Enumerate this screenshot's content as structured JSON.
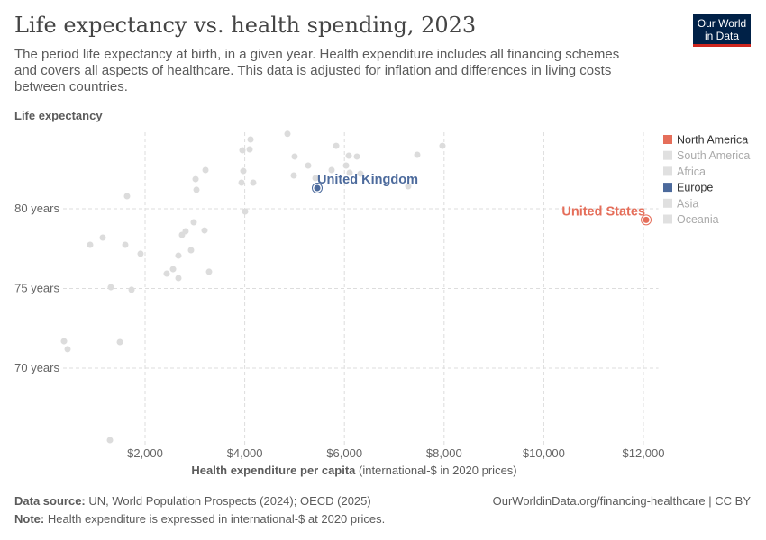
{
  "header": {
    "title": "Life expectancy vs. health spending, 2023",
    "subtitle": "The period life expectancy at birth, in a given year. Health expenditure includes all financing schemes and covers all aspects of healthcare. This data is adjusted for inflation and differences in living costs between countries.",
    "logo": "Our World in Data"
  },
  "footer": {
    "source_label": "Data source:",
    "source": "UN, World Population Prospects (2024); OECD (2025)",
    "url": "OurWorldinData.org/financing-healthcare | CC BY",
    "note_label": "Note:",
    "note": "Health expenditure is expressed in international-$ at 2020 prices."
  },
  "chart_data": {
    "type": "scatter",
    "title": "Life expectancy vs. health spending, 2023",
    "ylabel": "Life expectancy",
    "xlabel": "Health expenditure per capita",
    "xlabel_unit": "(international-$ in 2020 prices)",
    "xlim": [
      0,
      12300
    ],
    "ylim": [
      65,
      84.8
    ],
    "xticks": [
      {
        "v": 2000,
        "label": "$2,000"
      },
      {
        "v": 4000,
        "label": "$4,000"
      },
      {
        "v": 6000,
        "label": "$6,000"
      },
      {
        "v": 8000,
        "label": "$8,000"
      },
      {
        "v": 10000,
        "label": "$10,000"
      },
      {
        "v": 12000,
        "label": "$12,000"
      }
    ],
    "yticks": [
      {
        "v": 70,
        "label": "70 years"
      },
      {
        "v": 75,
        "label": "75 years"
      },
      {
        "v": 80,
        "label": "80 years"
      }
    ],
    "grid": true,
    "legend_placement": "right",
    "legend": [
      {
        "name": "North America",
        "color": "#e56e5a",
        "active": true
      },
      {
        "name": "South America",
        "color": "#e0e0e0",
        "active": false
      },
      {
        "name": "Africa",
        "color": "#e0e0e0",
        "active": false
      },
      {
        "name": "Europe",
        "color": "#4c6a9c",
        "active": true
      },
      {
        "name": "Asia",
        "color": "#e0e0e0",
        "active": false
      },
      {
        "name": "Oceania",
        "color": "#e0e0e0",
        "active": false
      }
    ],
    "highlighted": [
      {
        "name": "United Kingdom",
        "x": 5454,
        "y": 81.3,
        "color": "#4c6a9c"
      },
      {
        "name": "United States",
        "x": 12055,
        "y": 79.3,
        "color": "#e56e5a"
      }
    ],
    "background_points_color": "#dcdcdc",
    "points": [
      [
        4857,
        84.7
      ],
      [
        4116,
        84.35
      ],
      [
        3953,
        83.67
      ],
      [
        4098,
        83.73
      ],
      [
        5001,
        83.28
      ],
      [
        5273,
        82.71
      ],
      [
        4984,
        82.09
      ],
      [
        5418,
        81.92
      ],
      [
        3212,
        82.43
      ],
      [
        3013,
        81.86
      ],
      [
        3031,
        81.19
      ],
      [
        3971,
        82.37
      ],
      [
        3935,
        81.64
      ],
      [
        4170,
        81.64
      ],
      [
        1638,
        80.79
      ],
      [
        4007,
        79.83
      ],
      [
        2976,
        79.15
      ],
      [
        2813,
        78.59
      ],
      [
        2741,
        78.36
      ],
      [
        3193,
        78.64
      ],
      [
        1150,
        78.19
      ],
      [
        897,
        77.74
      ],
      [
        1602,
        77.74
      ],
      [
        1909,
        77.18
      ],
      [
        2922,
        77.4
      ],
      [
        2669,
        77.06
      ],
      [
        2434,
        75.93
      ],
      [
        2561,
        76.21
      ],
      [
        2669,
        75.65
      ],
      [
        3284,
        76.05
      ],
      [
        1313,
        75.08
      ],
      [
        1729,
        74.92
      ],
      [
        373,
        71.69
      ],
      [
        445,
        71.19
      ],
      [
        1494,
        71.64
      ],
      [
        1295,
        65.48
      ],
      [
        5834,
        83.95
      ],
      [
        5743,
        82.43
      ],
      [
        6087,
        83.33
      ],
      [
        6250,
        83.28
      ],
      [
        6033,
        82.71
      ],
      [
        6105,
        82.26
      ],
      [
        6322,
        82.2
      ],
      [
        7280,
        81.41
      ],
      [
        7461,
        83.39
      ],
      [
        7967,
        83.95
      ]
    ]
  }
}
